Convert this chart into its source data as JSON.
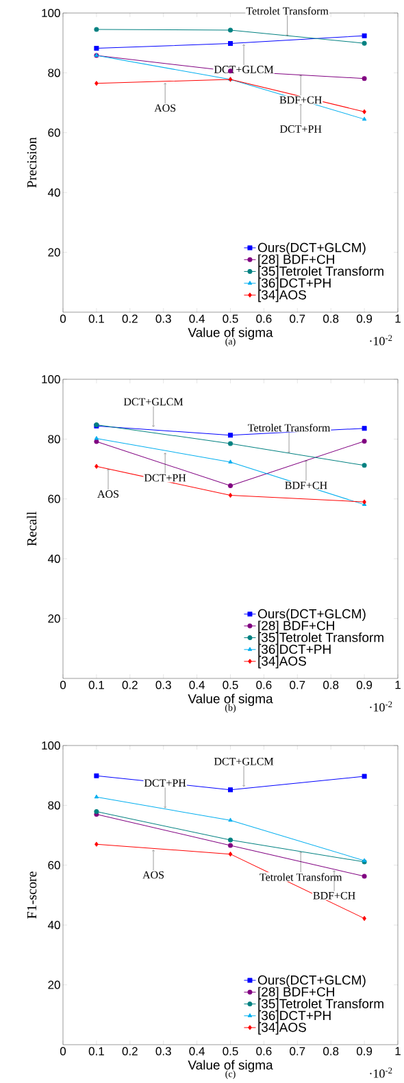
{
  "chart_data": [
    {
      "type": "line",
      "title": "(a)",
      "xlabel": "Value of sigma",
      "ylabel": "Precision",
      "x": [
        0.1,
        0.5,
        0.9
      ],
      "series": [
        {
          "name": "Ours(DCT+GLCM)",
          "color": "#0000ff",
          "marker": "square",
          "values": [
            88.2,
            89.8,
            92.4
          ]
        },
        {
          "name": "[28] BDF+CH",
          "color": "#800080",
          "marker": "circle",
          "values": [
            85.8,
            80.6,
            78.1
          ]
        },
        {
          "name": "[35]Tetrolet Transform",
          "color": "#008080",
          "marker": "circle",
          "values": [
            94.5,
            94.3,
            89.9
          ]
        },
        {
          "name": "[36]DCT+PH",
          "color": "#00aeef",
          "marker": "triangle",
          "values": [
            85.8,
            77.8,
            64.5
          ]
        },
        {
          "name": "[34]AOS",
          "color": "#ff0000",
          "marker": "diamond",
          "values": [
            76.5,
            77.8,
            67.0
          ]
        }
      ],
      "xlim": [
        0,
        1
      ],
      "xticks": [
        0,
        0.1,
        0.2,
        0.3,
        0.4,
        0.5,
        0.6,
        0.7,
        0.8,
        0.9,
        1
      ],
      "ylim": [
        0,
        100
      ],
      "yticks": [
        20,
        40,
        60,
        80,
        100
      ],
      "legend": "bottom right",
      "annotations": [
        {
          "text": "Tetrolet Transform",
          "x": 0.67,
          "y": 92.3
        },
        {
          "text": "DCT+GLCM",
          "x": 0.54,
          "y": 89.5
        },
        {
          "text": "BDF+CH",
          "x": 0.71,
          "y": 79.3
        },
        {
          "text": "DCT+PH",
          "x": 0.71,
          "y": 69.6
        },
        {
          "text": "AOS",
          "x": 0.305,
          "y": 76.6
        },
        "·10$^{-2}$"
      ]
    },
    {
      "type": "line",
      "title": "(b)",
      "xlabel": "Value of sigma",
      "ylabel": "Recall",
      "x": [
        0.1,
        0.5,
        0.9
      ],
      "series": [
        {
          "name": "Ours(DCT+GLCM)",
          "color": "#0000ff",
          "marker": "square",
          "values": [
            84.4,
            81.3,
            83.6
          ]
        },
        {
          "name": "[28] BDF+CH",
          "color": "#800080",
          "marker": "circle",
          "values": [
            79.2,
            64.4,
            79.3
          ]
        },
        {
          "name": "[35]Tetrolet Transform",
          "color": "#008080",
          "marker": "circle",
          "values": [
            84.8,
            78.5,
            71.2
          ]
        },
        {
          "name": "[36]DCT+PH",
          "color": "#00aeef",
          "marker": "triangle",
          "values": [
            80.2,
            72.3,
            58.1
          ]
        },
        {
          "name": "[34]AOS",
          "color": "#ff0000",
          "marker": "diamond",
          "values": [
            70.9,
            61.2,
            59.0
          ]
        }
      ],
      "xlim": [
        0,
        1
      ],
      "xticks": [
        0,
        0.1,
        0.2,
        0.3,
        0.4,
        0.5,
        0.6,
        0.7,
        0.8,
        0.9,
        1
      ],
      "ylim": [
        0,
        100
      ],
      "yticks": [
        20,
        40,
        60,
        80,
        100
      ],
      "legend": "bottom right",
      "annotations": [
        {
          "text": "DCT+GLCM",
          "x": 0.27,
          "y": 84.1
        },
        {
          "text": "Tetrolet Transform",
          "x": 0.675,
          "y": 75.4
        },
        {
          "text": "BDF+CH",
          "x": 0.726,
          "y": 72.9
        },
        {
          "text": "DCT+PH",
          "x": 0.305,
          "y": 75.4
        },
        {
          "text": "AOS",
          "x": 0.135,
          "y": 70.0
        },
        "·10$^{-2}$"
      ]
    },
    {
      "type": "line",
      "title": "(c)",
      "xlabel": "Value of sigma",
      "ylabel": "F1-score",
      "x": [
        0.1,
        0.5,
        0.9
      ],
      "series": [
        {
          "name": "Ours(DCT+GLCM)",
          "color": "#0000ff",
          "marker": "square",
          "values": [
            89.9,
            85.2,
            89.7
          ]
        },
        {
          "name": "[28] BDF+CH",
          "color": "#800080",
          "marker": "circle",
          "values": [
            77.0,
            66.6,
            56.3
          ]
        },
        {
          "name": "[35]Tetrolet Transform",
          "color": "#008080",
          "marker": "circle",
          "values": [
            77.9,
            68.4,
            61.1
          ]
        },
        {
          "name": "[36]DCT+PH",
          "color": "#00aeef",
          "marker": "triangle",
          "values": [
            82.8,
            75.0,
            61.5
          ]
        },
        {
          "name": "[34]AOS",
          "color": "#ff0000",
          "marker": "diamond",
          "values": [
            67.0,
            63.7,
            42.2
          ]
        }
      ],
      "xlim": [
        0,
        1
      ],
      "xticks": [
        0,
        0.1,
        0.2,
        0.3,
        0.4,
        0.5,
        0.6,
        0.7,
        0.8,
        0.9,
        1
      ],
      "ylim": [
        0,
        100
      ],
      "yticks": [
        20,
        40,
        60,
        80,
        100
      ],
      "legend": "bottom right",
      "annotations": [
        {
          "text": "DCT+GLCM",
          "x": 0.54,
          "y": 86.3
        },
        {
          "text": "DCT+PH",
          "x": 0.305,
          "y": 79.1
        },
        {
          "text": "Tetrolet Transform",
          "x": 0.71,
          "y": 64.5
        },
        {
          "text": "AOS",
          "x": 0.27,
          "y": 65.1
        },
        {
          "text": "BDF+CH",
          "x": 0.81,
          "y": 58.2
        },
        "·10$^{-2}$"
      ]
    }
  ]
}
